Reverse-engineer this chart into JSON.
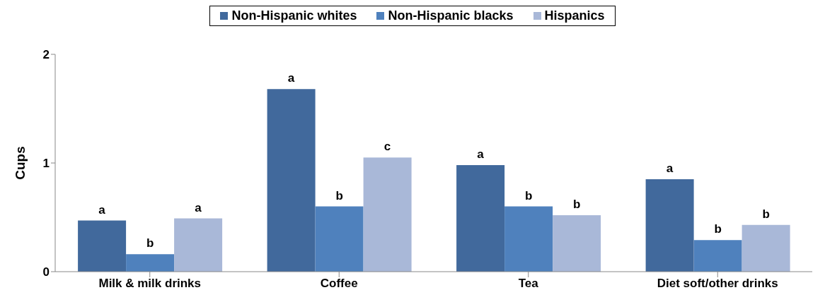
{
  "chart_data": {
    "type": "bar",
    "ylabel": "Cups",
    "categories": [
      "Milk & milk drinks",
      "Coffee",
      "Tea",
      "Diet soft/other drinks"
    ],
    "series": [
      {
        "name": "Non-Hispanic whites",
        "color": "#41699c",
        "values": [
          0.47,
          1.68,
          0.98,
          0.85
        ],
        "value_labels": [
          "a",
          "a",
          "a",
          "a"
        ]
      },
      {
        "name": "Non-Hispanic blacks",
        "color": "#4f81bd",
        "values": [
          0.16,
          0.6,
          0.6,
          0.29
        ],
        "value_labels": [
          "b",
          "b",
          "b",
          "b"
        ]
      },
      {
        "name": "Hispanics",
        "color": "#a9b8d8",
        "values": [
          0.49,
          1.05,
          0.52,
          0.43
        ],
        "value_labels": [
          "a",
          "c",
          "b",
          "b"
        ]
      }
    ],
    "ylim": [
      0,
      2
    ],
    "yticks": [
      0,
      1,
      2
    ],
    "legend": "top",
    "grid": false
  }
}
